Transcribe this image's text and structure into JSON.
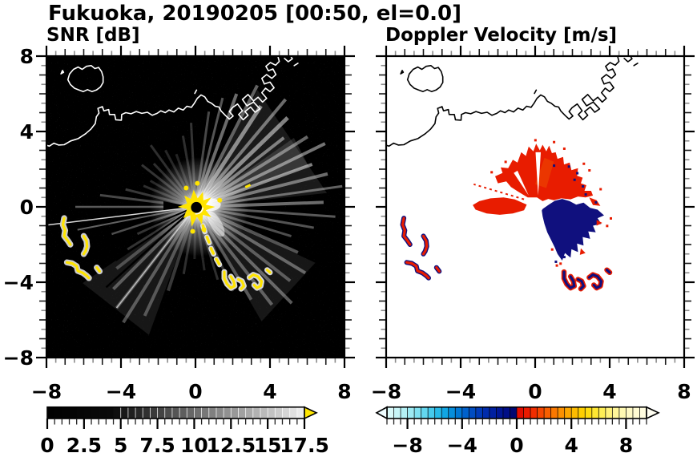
{
  "title": "Fukuoka, 20190205 [00:50, el=0.0]",
  "panels": [
    {
      "subtitle": "SNR [dB]",
      "bg": "#000000",
      "coast_color": "#ffffff",
      "x_ticks": {
        "values": [
          -8,
          -4,
          0,
          4,
          8
        ],
        "labels": [
          "−8",
          "−4",
          "0",
          "4",
          "8"
        ]
      },
      "y_ticks": {
        "values": [
          8,
          4,
          0,
          -4,
          -8
        ],
        "labels": [
          "8",
          "4",
          "0",
          "−4",
          "−8"
        ]
      },
      "show_y_labels": true
    },
    {
      "subtitle": "Doppler Velocity [m/s]",
      "bg": "#ffffff",
      "coast_color": "#000000",
      "x_ticks": {
        "values": [
          -8,
          -4,
          0,
          4,
          8
        ],
        "labels": [
          "−8",
          "−4",
          "0",
          "4",
          "8"
        ]
      },
      "y_ticks": {
        "values": [
          8,
          4,
          0,
          -4,
          -8
        ],
        "labels": [
          "8",
          "4",
          "0",
          "−4",
          "−8"
        ]
      },
      "show_y_labels": false
    }
  ],
  "colorbars": [
    {
      "id": "snr",
      "range": [
        0,
        17.5
      ],
      "step": 0.5,
      "major_ticks": {
        "values": [
          0,
          2.5,
          5,
          7.5,
          10,
          12.5,
          15,
          17.5
        ],
        "labels": [
          "0",
          "2.5",
          "5",
          "7.5",
          "10",
          "12.5",
          "15",
          "17.5"
        ]
      },
      "stops": [
        [
          0,
          "#000000"
        ],
        [
          4.5,
          "#0b0b0b"
        ],
        [
          7,
          "#353535"
        ],
        [
          10,
          "#6b6b6b"
        ],
        [
          13,
          "#9d9d9d"
        ],
        [
          15.5,
          "#c6c6c6"
        ],
        [
          17.5,
          "#f0f0f0"
        ]
      ],
      "over_arrow_color": "#ffe600",
      "arrows": "right",
      "separator_color": "#ffffff"
    },
    {
      "id": "velocity",
      "range": [
        -9.5,
        9.5
      ],
      "step": 0.5,
      "major_ticks": {
        "values": [
          -8,
          -4,
          0,
          4,
          8
        ],
        "labels": [
          "−8",
          "−4",
          "0",
          "4",
          "8"
        ]
      },
      "stops": [
        [
          -9.5,
          "#e2fbfa"
        ],
        [
          -8,
          "#abeff4"
        ],
        [
          -6.5,
          "#55d2ee"
        ],
        [
          -5.5,
          "#17b2e6"
        ],
        [
          -4.5,
          "#0082d8"
        ],
        [
          -3.5,
          "#0056c6"
        ],
        [
          -2.5,
          "#0032b2"
        ],
        [
          -1.5,
          "#001a9a"
        ],
        [
          -0.5,
          "#000a80"
        ],
        [
          -0.05,
          "#000566"
        ],
        [
          0.05,
          "#dc0800"
        ],
        [
          1,
          "#ef2000"
        ],
        [
          2,
          "#f75200"
        ],
        [
          3,
          "#fb8400"
        ],
        [
          4,
          "#fdb200"
        ],
        [
          5,
          "#fed800"
        ],
        [
          6,
          "#feec42"
        ],
        [
          7,
          "#fff48c"
        ],
        [
          8,
          "#fffabe"
        ],
        [
          9.5,
          "#fffce6"
        ]
      ],
      "under_arrow_color": "#effdff",
      "over_arrow_color": "#fffef2",
      "arrows": "both",
      "separator_color": "#000000"
    }
  ],
  "echo_colors": {
    "snr_high_yellow": "#ffe400",
    "snr_halo": "#cccccc",
    "vel_positive_red": "#e81c00",
    "vel_orange": "#f05600",
    "vel_negative_navy": "#10107e",
    "ray_white": "#ffffff"
  },
  "chart_data": [
    {
      "type": "heatmap",
      "title": "SNR [dB]",
      "xlabel": "",
      "ylabel": "",
      "xlim": [
        -8,
        8
      ],
      "ylim": [
        -8,
        8
      ],
      "grid": false,
      "colorbar": {
        "orientation": "horizontal",
        "tick_labels": [
          "0",
          "2.5",
          "5",
          "7.5",
          "10",
          "12.5",
          "15",
          "17.5"
        ],
        "tick_values": [
          0,
          2.5,
          5,
          7.5,
          10,
          12.5,
          15,
          17.5
        ],
        "colormap": "black-to-white grayscale with yellow over-range arrow"
      },
      "features": [
        "radar site at (0,0) marked by small black dot with partial white ring",
        "solid yellow high-SNR clutter cluster around the radar core, |x|<1 and |y|<1",
        "white radial ground-clutter streaks radiating mainly toward NE, E, SE and SW out to radius ~4-7 km",
        "narrow black no-echo shadow sectors toward W, WSW and SSW",
        "yellow echo trail with white halo running SSE from about (0.4,-1.0) to (1.4,-3.3)",
        "hooked yellow echo patches with white halo between (1.5,-3.4) and (3.6,-4.4)",
        "yellow crescent echo arcs with white halo near x -7.1..-5.7, y -0.5..-3.8",
        "white coastline: island around (-6.9..-5.0, 6.1..7.5), mainland shore from (-8,3.3) rising to harbor piers from (1.3,5.1) exiting top near (4.5,8)"
      ]
    },
    {
      "type": "heatmap",
      "title": "Doppler Velocity [m/s]",
      "xlabel": "",
      "ylabel": "",
      "xlim": [
        -8,
        8
      ],
      "ylim": [
        -8,
        8
      ],
      "grid": false,
      "colorbar": {
        "orientation": "horizontal",
        "tick_labels": [
          "−8",
          "−4",
          "0",
          "4",
          "8"
        ],
        "tick_values": [
          -8,
          -4,
          0,
          4,
          8
        ],
        "colormap": "pale-cyan to navy for negative, red to pale-yellow for positive, arrows both ends"
      },
      "features": [
        "white data-gap circle at radar site (0,0)",
        "red positive-velocity fan north to northeast of radar, x -2.2..3.1, y 0.3..3.4",
        "red wedge pointing west from radar to about (-3.4,0.2)",
        "dark navy negative-velocity lobe southeast of radar, x 0.3..3.7, y 0.4..-2.9, with ragged fringes",
        "red/navy mottled crescent arcs near x -7.1..-5.7, y -0.5..-3.8",
        "navy hooked patches with red fringe between (1.5,-3.4) and (3.6,-4.4)",
        "black coastline identical in shape to SNR panel"
      ]
    }
  ]
}
